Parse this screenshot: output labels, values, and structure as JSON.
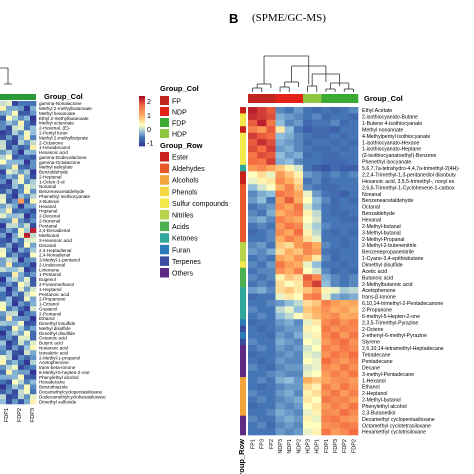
{
  "chart_data": {
    "type": "heatmap",
    "panel_b": {
      "letter": "B",
      "title": "(SPME/GC-MS)",
      "columns": [
        "FP1",
        "FP3",
        "FP2",
        "NDP3",
        "NDP1",
        "NDP2",
        "HDP3",
        "HDP1",
        "FDP1",
        "FDP3",
        "FDP2",
        "FDP2"
      ],
      "column_groups": [
        "FP",
        "FP",
        "FP",
        "NDP",
        "NDP",
        "NDP",
        "HDP",
        "HDP",
        "FDP",
        "FDP",
        "FDP",
        "FDP"
      ],
      "group_col_label": "Group_Col",
      "group_row_label": "Group_Row",
      "rows": [
        "Ethyl Acetate",
        "2-isothiocyanato-Butane",
        "1-Butene 4-isothiocyanato",
        "Methyl nonanoate",
        "4-Methylpentyl isothiocyanate",
        "1-isothiocyanato-Hexane",
        "1-isothiocyanato-Heptane",
        "(2-isothiocyanatoethyl)-Benzene",
        "Phenethyl isocyanate",
        "5,6,7,7a-tetrahydro-4,4,7a-trimethyl-2(4H)-",
        "2,2,4-Trimethyl-1,3-pentanediol diisobuty",
        "Hexanoic acid, 3,5,5-trimethyl-, nonyl es",
        "2,6,6-Trimethyl-1-Cyclohexene-1-carbox",
        "Nonanal",
        "Benzeneacetaldehyde",
        "Octanal",
        "Benzaldehyde",
        "Hexanal",
        "2-Methyl-butanal",
        "3-Methyl-butanal",
        "2-Methyl-Propanal",
        "2-Methyl-2-butenenitrile",
        "Benzenepropanenitrile",
        "1-Cyano-3,4-epithiobutane",
        "Dimethyl disulfide",
        "Acetic acid",
        "Butanoic acid",
        "2-Methylbutanoic acid",
        "Acetophenone",
        "trans-β-Ionone",
        "6,10,14-trimethyl-2-Pentadecanone",
        "2-Propanone",
        "6-methyl-5-Hepten-2-one",
        "2,3,5-Trimethyl-Pyrazine",
        "2-Octene",
        "2-ethenyl-6-methyl-Pyrazine",
        "Styrene",
        "2,6,10,14-tetramethyl-Heptadecane",
        "Tetradecane",
        "Pentadecane",
        "Decane",
        "3-methyl-Pentadecane",
        "1-Hexanol",
        "Ethanol",
        "2-Heptanol",
        "2-Methyl-butanol",
        "Phenylethyl alcohol",
        "2,3-Butanediol",
        "Decamethyl cyclopentasiloxane",
        "Octamethyl cyclotetrasiloxane",
        "Hexamethyl cyclotrisiloxane"
      ],
      "row_groups": [
        "Ester",
        "Sulfur compounds",
        "Sulfur compounds",
        "Ester",
        "Sulfur compounds",
        "Sulfur compounds",
        "Sulfur compounds",
        "Sulfur compounds",
        "Sulfur compounds",
        "Ketones",
        "Ester",
        "Ester",
        "Aldehydes",
        "Aldehydes",
        "Aldehydes",
        "Aldehydes",
        "Aldehydes",
        "Aldehydes",
        "Aldehydes",
        "Aldehydes",
        "Aldehydes",
        "Nitriles",
        "Nitriles",
        "Nitriles",
        "Sulfur compounds",
        "Acids",
        "Acids",
        "Acids",
        "Ketones",
        "Ketones",
        "Ketones",
        "Ketones",
        "Ketones",
        "Furan",
        "Terpenes",
        "Furan",
        "Terpenes",
        "Others",
        "Others",
        "Others",
        "Others",
        "Others",
        "Alcohols",
        "Alcohols",
        "Alcohols",
        "Alcohols",
        "Alcohols",
        "Alcohols",
        "Others",
        "Others",
        "Others"
      ],
      "values": [
        [
          2.2,
          2.0,
          1.8,
          -0.5,
          -0.6,
          -0.4,
          -0.6,
          -0.7,
          -0.6,
          -0.7,
          -0.6,
          -0.5
        ],
        [
          2.1,
          2.0,
          1.9,
          -0.3,
          -0.4,
          -0.5,
          -0.6,
          -0.5,
          -0.7,
          -0.6,
          -0.6,
          -0.7
        ],
        [
          1.8,
          2.2,
          1.6,
          -0.2,
          -0.5,
          -0.4,
          -0.7,
          -0.6,
          -0.6,
          -0.5,
          -0.7,
          -0.6
        ],
        [
          1.5,
          1.2,
          1.8,
          0.5,
          -0.2,
          -0.6,
          -0.8,
          -0.7,
          -0.7,
          -0.8,
          -0.6,
          -0.6
        ],
        [
          2.0,
          1.8,
          1.7,
          -0.2,
          -0.3,
          -0.5,
          -0.6,
          -0.7,
          -0.7,
          -0.6,
          -0.7,
          -0.6
        ],
        [
          1.8,
          2.1,
          1.9,
          -0.3,
          -0.4,
          -0.5,
          -0.7,
          -0.6,
          -0.6,
          -0.7,
          -0.6,
          -0.7
        ],
        [
          1.9,
          1.7,
          2.0,
          -0.4,
          -0.3,
          -0.5,
          -0.6,
          -0.7,
          -0.7,
          -0.6,
          -0.7,
          -0.6
        ],
        [
          1.6,
          1.9,
          1.8,
          -0.2,
          -0.4,
          -0.3,
          -0.7,
          -0.6,
          -0.7,
          -0.7,
          -0.6,
          -0.6
        ],
        [
          1.7,
          1.6,
          2.0,
          -0.3,
          -0.2,
          -0.5,
          -0.6,
          -0.6,
          -0.7,
          -0.7,
          -0.7,
          -0.6
        ],
        [
          1.2,
          1.4,
          1.1,
          0.8,
          0.4,
          0.1,
          -0.6,
          -0.8,
          -0.9,
          -0.7,
          -0.8,
          -0.8
        ],
        [
          0.3,
          0.6,
          0.2,
          1.2,
          0.8,
          0.4,
          -0.4,
          -0.5,
          -0.6,
          -0.5,
          -0.6,
          -0.5
        ],
        [
          0.2,
          0.4,
          0.5,
          1.4,
          1.0,
          0.6,
          -0.6,
          -0.5,
          -0.7,
          -0.6,
          -0.6,
          -0.6
        ],
        [
          -0.2,
          0.1,
          0.3,
          1.0,
          1.5,
          0.8,
          -0.5,
          -0.6,
          -0.7,
          -0.7,
          -0.6,
          -0.6
        ],
        [
          -0.5,
          -0.3,
          -0.2,
          1.6,
          1.4,
          1.1,
          0.2,
          -0.4,
          -0.6,
          -0.7,
          -0.8,
          -0.6
        ],
        [
          -0.4,
          -0.2,
          -0.6,
          1.2,
          1.8,
          1.0,
          0.3,
          -0.2,
          -0.5,
          -0.7,
          -0.6,
          -0.7
        ],
        [
          -0.6,
          -0.5,
          -0.4,
          1.4,
          1.1,
          1.6,
          0.1,
          -0.3,
          -0.6,
          -0.7,
          -0.6,
          -0.6
        ],
        [
          -0.5,
          -0.6,
          -0.3,
          1.0,
          1.3,
          1.5,
          0.4,
          0.0,
          -0.6,
          -0.7,
          -0.7,
          -0.6
        ],
        [
          -0.4,
          -0.3,
          -0.5,
          1.5,
          1.2,
          1.0,
          0.3,
          0.1,
          -0.6,
          -0.6,
          -0.7,
          -0.7
        ],
        [
          -0.6,
          -0.5,
          -0.6,
          1.2,
          1.6,
          1.4,
          0.2,
          -0.1,
          -0.5,
          -0.6,
          -0.6,
          -0.6
        ],
        [
          -0.7,
          -0.6,
          -0.5,
          1.4,
          1.1,
          1.7,
          0.4,
          0.0,
          -0.6,
          -0.7,
          -0.6,
          -0.7
        ],
        [
          -0.6,
          -0.6,
          -0.5,
          1.0,
          1.5,
          1.2,
          0.6,
          0.2,
          -0.6,
          -0.6,
          -0.7,
          -0.6
        ],
        [
          -0.5,
          -0.4,
          -0.6,
          0.8,
          0.6,
          1.2,
          1.5,
          1.0,
          -0.5,
          -0.6,
          -0.7,
          -0.6
        ],
        [
          -0.4,
          -0.5,
          -0.3,
          0.6,
          1.0,
          0.8,
          1.4,
          1.2,
          -0.6,
          -0.7,
          -0.6,
          -0.6
        ],
        [
          -0.6,
          -0.5,
          -0.6,
          1.1,
          0.9,
          1.3,
          1.0,
          0.5,
          -0.5,
          -0.7,
          -0.6,
          -0.6
        ],
        [
          -0.5,
          -0.6,
          -0.4,
          1.6,
          1.2,
          1.0,
          0.2,
          -0.2,
          -0.6,
          -0.6,
          -0.7,
          -0.6
        ],
        [
          -0.6,
          -0.5,
          -0.5,
          1.3,
          1.0,
          1.5,
          0.3,
          0.1,
          -0.5,
          -0.7,
          -0.6,
          -0.7
        ],
        [
          -0.5,
          -0.6,
          -0.5,
          0.4,
          0.8,
          0.6,
          1.8,
          1.4,
          -0.3,
          -0.5,
          -0.6,
          -0.5
        ],
        [
          -0.6,
          -0.5,
          -0.6,
          0.6,
          0.3,
          0.5,
          1.6,
          2.0,
          -0.2,
          -0.5,
          -0.6,
          -0.5
        ],
        [
          -0.4,
          -0.3,
          -0.5,
          0.6,
          0.8,
          0.5,
          0.8,
          1.2,
          0.4,
          0.2,
          -0.1,
          0.0
        ],
        [
          -0.7,
          -0.6,
          -0.6,
          0.2,
          0.5,
          0.3,
          1.4,
          1.6,
          0.2,
          -0.3,
          -0.4,
          -0.3
        ],
        [
          -0.6,
          -0.6,
          -0.5,
          -0.4,
          -0.2,
          0.0,
          0.6,
          0.8,
          1.5,
          1.2,
          1.0,
          1.1
        ],
        [
          -0.5,
          -0.6,
          -0.6,
          0.0,
          0.2,
          -0.2,
          0.8,
          1.0,
          1.3,
          1.0,
          1.2,
          0.9
        ],
        [
          -0.6,
          -0.5,
          -0.6,
          -0.2,
          0.0,
          0.3,
          0.6,
          0.9,
          1.2,
          1.4,
          1.0,
          1.1
        ],
        [
          -0.7,
          -0.6,
          -0.6,
          -0.4,
          -0.3,
          -0.5,
          0.2,
          0.5,
          1.4,
          1.6,
          1.3,
          1.5
        ],
        [
          -0.6,
          -0.7,
          -0.6,
          -0.5,
          -0.4,
          -0.4,
          0.4,
          0.3,
          1.6,
          1.3,
          1.5,
          1.4
        ],
        [
          -0.6,
          -0.6,
          -0.7,
          -0.4,
          -0.5,
          -0.3,
          0.2,
          0.4,
          1.4,
          1.7,
          1.2,
          1.6
        ],
        [
          -0.5,
          -0.6,
          -0.6,
          -0.3,
          -0.4,
          -0.5,
          0.3,
          0.2,
          1.2,
          1.5,
          1.7,
          1.3
        ],
        [
          -0.6,
          -0.5,
          -0.6,
          -0.4,
          -0.5,
          -0.4,
          0.1,
          0.3,
          1.5,
          1.3,
          1.6,
          1.4
        ],
        [
          -0.7,
          -0.6,
          -0.6,
          -0.5,
          -0.4,
          -0.5,
          0.2,
          0.1,
          1.3,
          1.6,
          1.4,
          1.7
        ],
        [
          -0.6,
          -0.7,
          -0.6,
          -0.4,
          -0.5,
          -0.5,
          0.3,
          0.2,
          1.7,
          1.4,
          1.2,
          1.5
        ],
        [
          -0.5,
          -0.6,
          -0.7,
          -0.5,
          -0.4,
          -0.4,
          0.1,
          0.2,
          1.4,
          1.2,
          1.6,
          1.3
        ],
        [
          -0.6,
          -0.6,
          -0.5,
          -0.4,
          -0.5,
          -0.5,
          0.2,
          0.3,
          1.2,
          1.5,
          1.3,
          1.6
        ],
        [
          -0.6,
          -0.5,
          -0.6,
          -0.3,
          -0.2,
          -0.4,
          1.0,
          0.8,
          1.1,
          1.3,
          1.4,
          1.2
        ],
        [
          -0.6,
          -0.7,
          -0.6,
          -0.5,
          -0.4,
          -0.4,
          0.6,
          0.4,
          1.5,
          1.2,
          1.6,
          1.3
        ],
        [
          -0.5,
          -0.6,
          -0.6,
          -0.4,
          -0.3,
          -0.5,
          0.4,
          0.6,
          1.3,
          1.6,
          1.2,
          1.5
        ],
        [
          -0.6,
          -0.5,
          -0.6,
          -0.5,
          -0.4,
          -0.3,
          0.5,
          0.3,
          1.6,
          1.4,
          1.5,
          1.2
        ],
        [
          -0.7,
          -0.6,
          -0.6,
          -0.4,
          -0.5,
          -0.4,
          0.3,
          0.5,
          1.2,
          1.5,
          1.3,
          1.6
        ],
        [
          -0.6,
          -0.6,
          -0.5,
          -0.3,
          -0.4,
          -0.5,
          0.2,
          0.4,
          1.4,
          1.3,
          1.7,
          1.4
        ],
        [
          -0.5,
          -0.6,
          -0.6,
          -0.4,
          -0.3,
          -0.4,
          0.4,
          0.2,
          1.5,
          1.6,
          1.3,
          1.2
        ],
        [
          -0.6,
          -0.5,
          -0.7,
          -0.5,
          -0.4,
          -0.5,
          0.3,
          0.3,
          1.3,
          1.4,
          1.6,
          1.5
        ],
        [
          -0.6,
          -0.6,
          -0.6,
          -0.4,
          -0.5,
          -0.4,
          0.2,
          0.4,
          1.6,
          1.2,
          1.4,
          1.7
        ]
      ]
    },
    "legend": {
      "colorbar_ticks": [
        2,
        1,
        0,
        -1
      ],
      "colorbar_range": [
        -1.2,
        2.4
      ],
      "group_col_title": "Group_Col",
      "group_col_items": [
        {
          "label": "FP",
          "color": "#c0261f"
        },
        {
          "label": "NDP",
          "color": "#e2231a"
        },
        {
          "label": "FDP",
          "color": "#3aaa35"
        },
        {
          "label": "HDP",
          "color": "#8dc63f"
        }
      ],
      "group_row_title": "Group_Row",
      "group_row_items": [
        {
          "label": "Ester",
          "color": "#c8201b"
        },
        {
          "label": "Aldehydes",
          "color": "#e8582a"
        },
        {
          "label": "Alcohols",
          "color": "#f2a33a"
        },
        {
          "label": "Phenols",
          "color": "#f6d743"
        },
        {
          "label": "Sulfur compounds",
          "color": "#f3e84a"
        },
        {
          "label": "Nitriles",
          "color": "#b8d44a"
        },
        {
          "label": "Acids",
          "color": "#4caf50"
        },
        {
          "label": "Ketones",
          "color": "#2fa79b"
        },
        {
          "label": "Furan",
          "color": "#2b7bb9"
        },
        {
          "label": "Terpenes",
          "color": "#3b4fa0"
        },
        {
          "label": "Others",
          "color": "#5e2a84"
        }
      ]
    },
    "panel_a_partial": {
      "group_col_label": "Group_Col",
      "group_row_label": "Group_Row",
      "columns": [
        "FDP1",
        "FDP2",
        "FDP3"
      ],
      "rows": [
        "gamma-Nonalactone",
        "Methyl 2-methylbutanoate",
        "Methyl hexanoate",
        "Ethyl 2-methylbutanoate",
        "Methyl octanoate",
        "2-Hexenal, (E)-",
        "2-Pentyl furan",
        "Methyl 2-methylbutyrate",
        "2-Octanone",
        "1-Hexadecanol",
        "Hexanoic acid",
        "gamma-Dodecalactone",
        "gamma-Octalactone",
        "Methyl salicylate",
        "Benzaldehyde",
        "2-Heptenal",
        "1-Octen-3-ol",
        "Nonanal",
        "Benzeneacetaldehyde",
        "Phenethyl isothiocyanate",
        "2-Butenal",
        "Hexanal",
        "Heptanal",
        "2-Decenal",
        "2-Nonenal",
        "Pentanal",
        "2,4-Decadienal",
        "Methional",
        "2-Hexenoic acid",
        "Decanal",
        "2,4-Heptadienal",
        "2,4-Nonadienal",
        "3-Methyl-1-pentanol",
        "2-Undecenal",
        "Limonene",
        "1-Pentanol",
        "Eugenol",
        "2-Furanmethanol",
        "1-Heptanol",
        "Pentanoic acid",
        "2-Propanone",
        "1-Octanol",
        "Guaiacol",
        "2-Pentanol",
        "Ethanol",
        "Dimethyl trisulfide",
        "Methyl disulfide",
        "Dimethyl disulfide",
        "Octanoic acid",
        "Butyric acid",
        "Nonanoic acid",
        "Isovaleric acid",
        "2-Methyl-1-propanol",
        "Acetophenone",
        "trans-beta-Ionone",
        "6-Methyl-5-hepten-2-one",
        "Phenylethyl alcohol",
        "Hexadecane",
        "Benzothiazole",
        "Decamethylcyclopentasiloxane",
        "Dodecamethylcyclohexasiloxane",
        "Dimethyl sulfoxide"
      ]
    }
  }
}
